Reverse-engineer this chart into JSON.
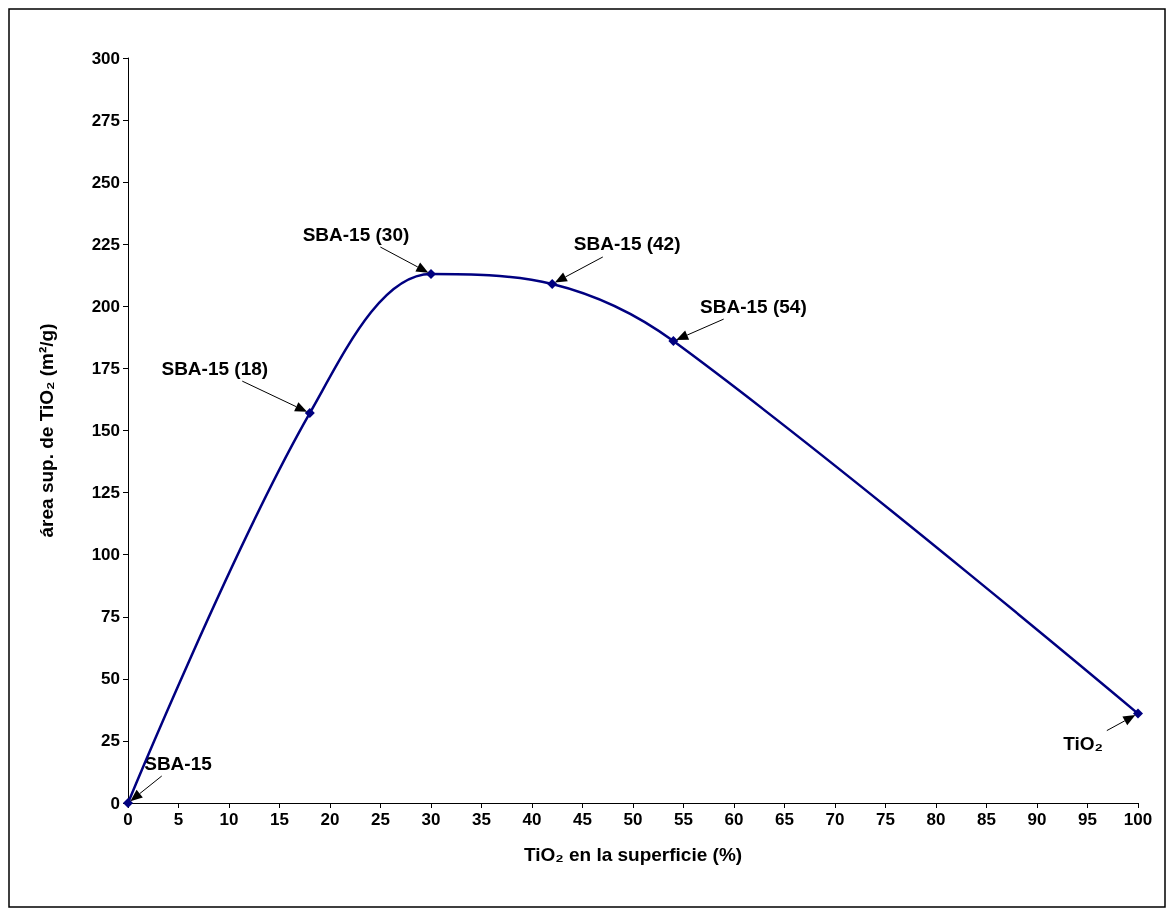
{
  "chart_data": {
    "type": "line",
    "xlabel": "TiO₂ en la superficie (%)",
    "ylabel": "área sup. de TiO₂ (m²/g)",
    "x": [
      0,
      18,
      30,
      42,
      54,
      100
    ],
    "series": [
      {
        "color": "#000080",
        "values": [
          0,
          157,
          213,
          209,
          186,
          36
        ]
      }
    ],
    "xlim": [
      0,
      100
    ],
    "xticks": [
      0,
      5,
      10,
      15,
      20,
      25,
      30,
      35,
      40,
      45,
      50,
      55,
      60,
      65,
      70,
      75,
      80,
      85,
      90,
      95,
      100
    ],
    "ylim": [
      0,
      300
    ],
    "yticks": [
      0,
      25,
      50,
      75,
      100,
      125,
      150,
      175,
      200,
      225,
      250,
      275,
      300
    ],
    "grid": false,
    "marker": "diamond",
    "line_style": "solid",
    "annotations": [
      {
        "text": "SBA-15",
        "x": 0,
        "y": 0
      },
      {
        "text": "SBA-15 (18)",
        "x": 18,
        "y": 157
      },
      {
        "text": "SBA-15 (30)",
        "x": 30,
        "y": 213
      },
      {
        "text": "SBA-15 (42)",
        "x": 42,
        "y": 209
      },
      {
        "text": "SBA-15 (54)",
        "x": 54,
        "y": 186
      },
      {
        "text": "TiO₂",
        "x": 100,
        "y": 36
      }
    ]
  }
}
